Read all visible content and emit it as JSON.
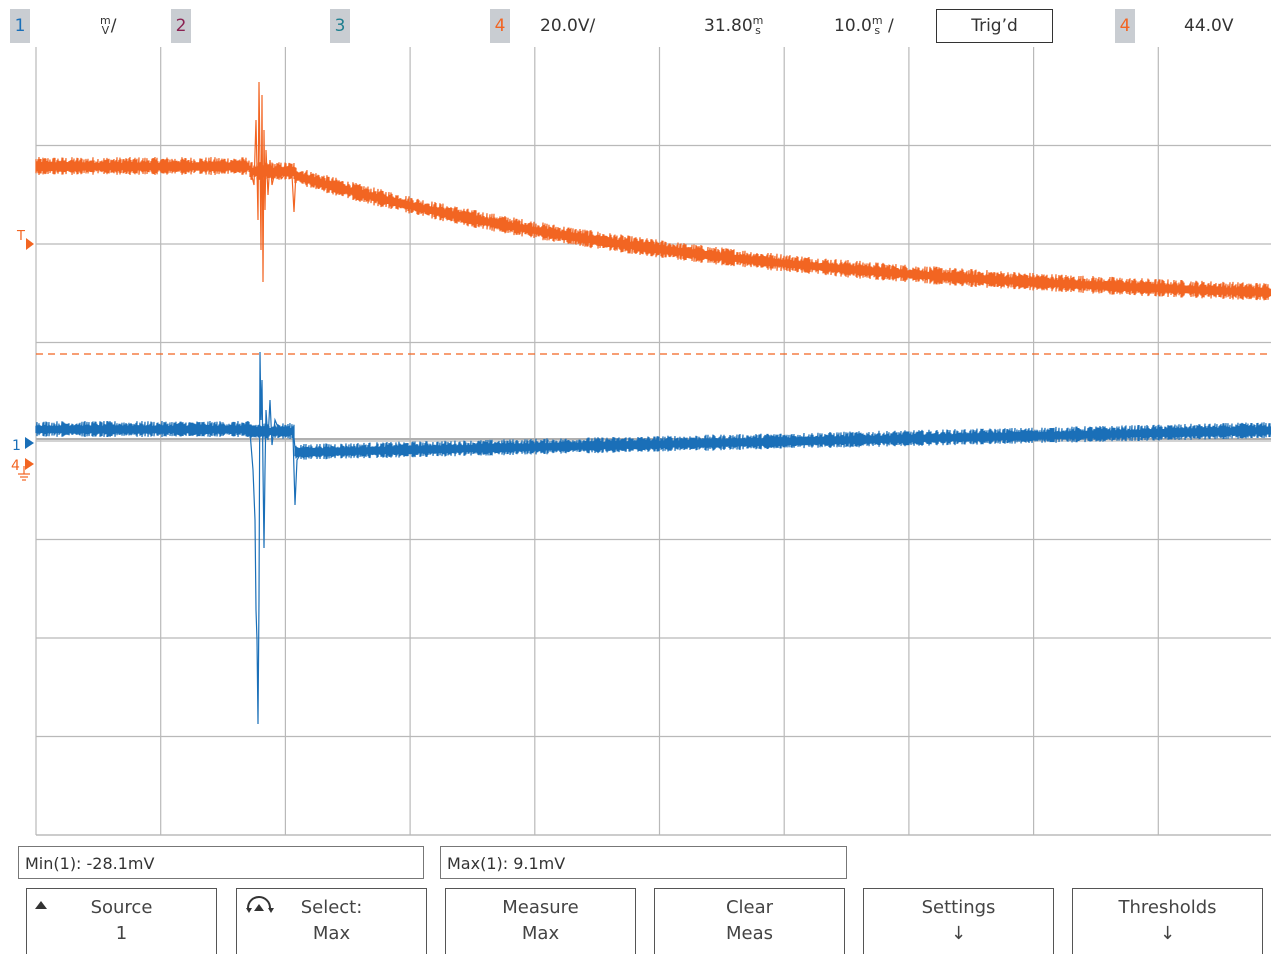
{
  "header": {
    "ch1": {
      "label": "1",
      "color": "#1a6fb8",
      "scale_num": "m",
      "scale_den": "V",
      "slash": "/"
    },
    "ch2": {
      "label": "2",
      "color": "#8b2252"
    },
    "ch3": {
      "label": "3",
      "color": "#1f7f8f"
    },
    "ch4": {
      "label": "4",
      "color": "#f26522",
      "scale": "20.0V/"
    },
    "delay": {
      "value": "31.80",
      "num": "m",
      "den": "s"
    },
    "timebase": {
      "value": "10.0",
      "num": "m",
      "den": "s",
      "slash": "/"
    },
    "trigger_status": "Trig’d",
    "trigger_source": {
      "label": "4",
      "color": "#f26522"
    },
    "trigger_level": "44.0V"
  },
  "markers": {
    "trigger": "T",
    "ch1": "1",
    "ch4": "4"
  },
  "measurements": {
    "min": "Min(1): -28.1mV",
    "max": "Max(1): 9.1mV"
  },
  "softkeys": [
    {
      "line1": "Source",
      "line2": "1",
      "icon": "up-triangle-icon"
    },
    {
      "line1": "Select:",
      "line2": "Max",
      "icon": "entry-knob-icon"
    },
    {
      "line1": "Measure",
      "line2": "Max"
    },
    {
      "line1": "Clear",
      "line2": "Meas"
    },
    {
      "line1": "Settings",
      "line2": "↓"
    },
    {
      "line1": "Thresholds",
      "line2": "↓"
    }
  ],
  "colors": {
    "ch1_trace": "#1a6fb8",
    "ch4_trace": "#f26522",
    "grid": "#b9b9b9"
  }
}
